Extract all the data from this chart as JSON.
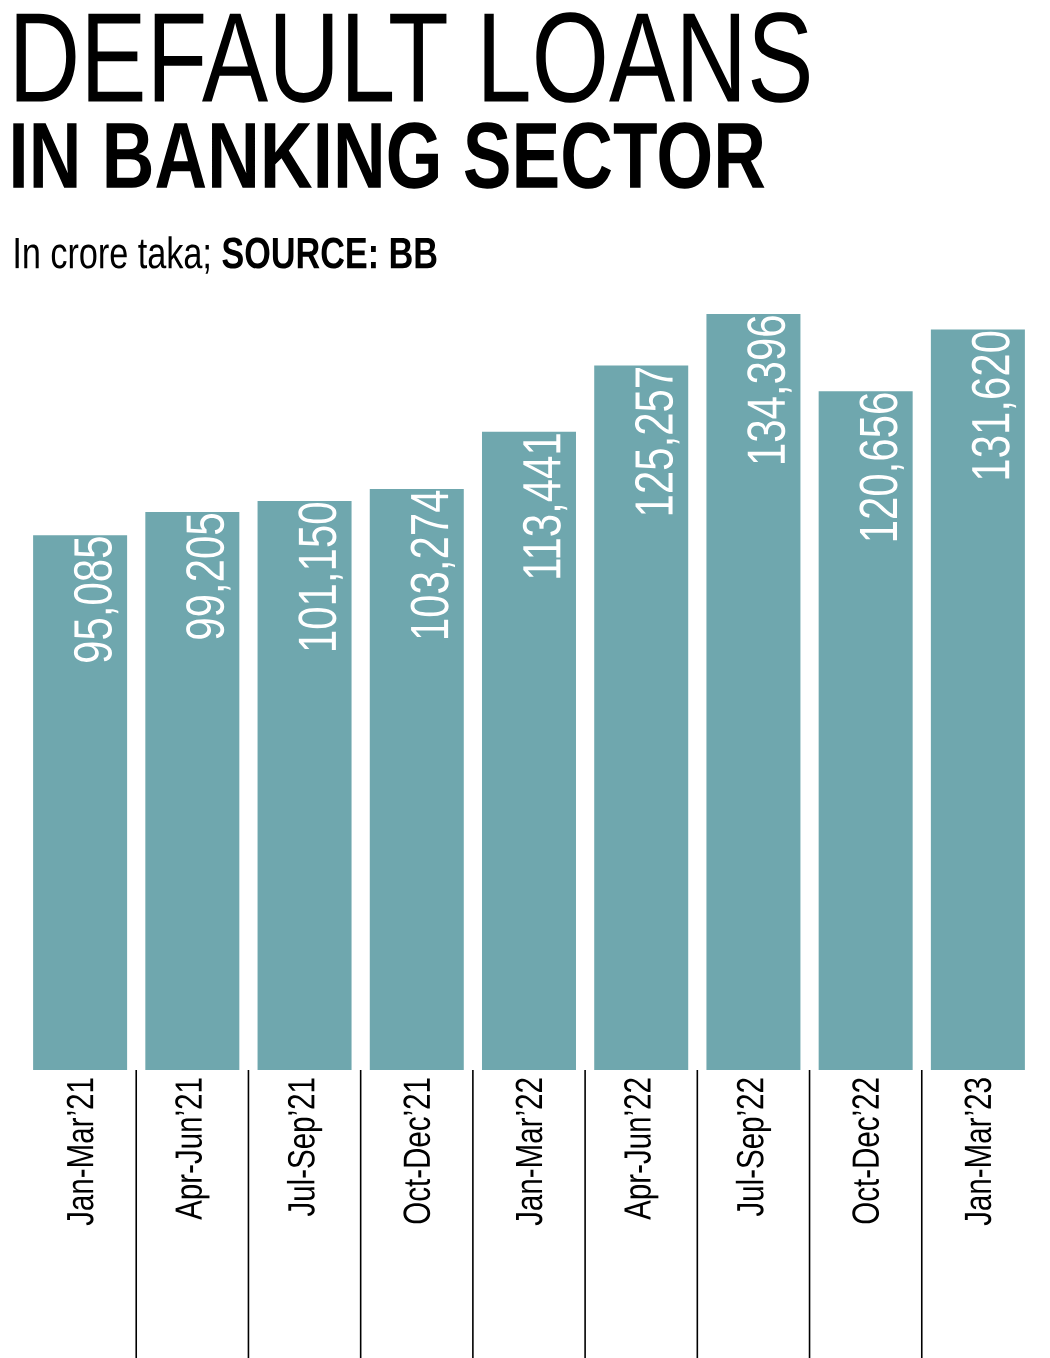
{
  "chart_data": {
    "type": "bar",
    "title": "DEFAULT LOANS",
    "subtitle": "IN BANKING SECTOR",
    "annotations": [
      "In crore taka; **SOURCE: BB**"
    ],
    "categories": [
      "Jan-Mar’21",
      "Apr-Jun’21",
      "Jul-Sep’21",
      "Oct-Dec’21",
      "Jan-Mar’22",
      "Apr-Jun’22",
      "Jul-Sep’22",
      "Oct-Dec’22",
      "Jan-Mar’23"
    ],
    "values": [
      95085,
      99205,
      101150,
      103274,
      113441,
      125257,
      134396,
      120656,
      131620
    ],
    "value_labels": [
      "95,085",
      "99,205",
      "101,150",
      "103,274",
      "113,441",
      "125,257",
      "134,396",
      "120,656",
      "131,620"
    ],
    "color": "#6fa7ae",
    "tick_labels": "x"
  }
}
